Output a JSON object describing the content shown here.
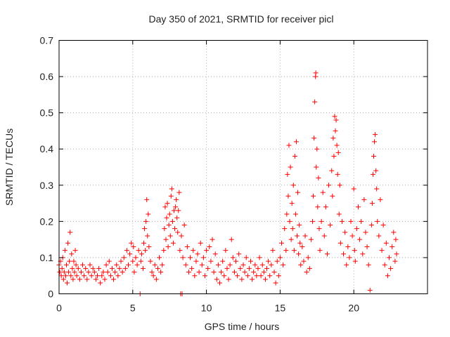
{
  "chart_data": {
    "type": "scatter",
    "title": "Day 350 of 2021, SRMTID for receiver picl",
    "xlabel": "GPS time / hours",
    "ylabel": "SRMTID / TECUs",
    "xlim": [
      0,
      25
    ],
    "ylim": [
      0,
      0.7
    ],
    "xticks": [
      0,
      5,
      10,
      15,
      20
    ],
    "yticks": [
      0,
      0.1,
      0.2,
      0.3,
      0.4,
      0.5,
      0.6,
      0.7
    ],
    "xtick_labels": [
      "0",
      "5",
      "10",
      "15",
      "20"
    ],
    "ytick_labels": [
      "0",
      "0.1",
      "0.2",
      "0.3",
      "0.4",
      "0.5",
      "0.6",
      "0.7"
    ],
    "grid": true,
    "marker": "+",
    "color": "#ff0000",
    "series": [
      {
        "name": "SRMTID",
        "points": [
          [
            0.0,
            0.08
          ],
          [
            0.05,
            0.06
          ],
          [
            0.1,
            0.09
          ],
          [
            0.15,
            0.05
          ],
          [
            0.2,
            0.07
          ],
          [
            0.25,
            0.1
          ],
          [
            0.3,
            0.04
          ],
          [
            0.35,
            0.06
          ],
          [
            0.4,
            0.12
          ],
          [
            0.45,
            0.05
          ],
          [
            0.5,
            0.08
          ],
          [
            0.55,
            0.03
          ],
          [
            0.6,
            0.14
          ],
          [
            0.65,
            0.06
          ],
          [
            0.7,
            0.09
          ],
          [
            0.75,
            0.17
          ],
          [
            0.8,
            0.05
          ],
          [
            0.85,
            0.11
          ],
          [
            0.9,
            0.07
          ],
          [
            0.95,
            0.04
          ],
          [
            1.0,
            0.09
          ],
          [
            1.05,
            0.06
          ],
          [
            1.1,
            0.12
          ],
          [
            1.15,
            0.08
          ],
          [
            1.2,
            0.05
          ],
          [
            1.3,
            0.07
          ],
          [
            1.4,
            0.04
          ],
          [
            1.5,
            0.06
          ],
          [
            1.6,
            0.08
          ],
          [
            1.7,
            0.05
          ],
          [
            1.8,
            0.07
          ],
          [
            1.9,
            0.04
          ],
          [
            2.0,
            0.06
          ],
          [
            2.1,
            0.08
          ],
          [
            2.2,
            0.05
          ],
          [
            2.3,
            0.07
          ],
          [
            2.4,
            0.06
          ],
          [
            2.5,
            0.04
          ],
          [
            2.6,
            0.05
          ],
          [
            2.7,
            0.07
          ],
          [
            2.8,
            0.03
          ],
          [
            2.9,
            0.05
          ],
          [
            3.0,
            0.06
          ],
          [
            3.1,
            0.04
          ],
          [
            3.2,
            0.08
          ],
          [
            3.3,
            0.06
          ],
          [
            3.4,
            0.09
          ],
          [
            3.5,
            0.05
          ],
          [
            3.6,
            0.07
          ],
          [
            3.7,
            0.04
          ],
          [
            3.8,
            0.06
          ],
          [
            3.9,
            0.08
          ],
          [
            4.0,
            0.05
          ],
          [
            4.1,
            0.07
          ],
          [
            4.2,
            0.09
          ],
          [
            4.3,
            0.06
          ],
          [
            4.4,
            0.1
          ],
          [
            4.5,
            0.07
          ],
          [
            4.6,
            0.12
          ],
          [
            4.7,
            0.08
          ],
          [
            4.8,
            0.11
          ],
          [
            4.9,
            0.14
          ],
          [
            5.0,
            0.09
          ],
          [
            5.05,
            0.13
          ],
          [
            5.1,
            0.06
          ],
          [
            5.2,
            0.1
          ],
          [
            5.3,
            0.08
          ],
          [
            5.4,
            0.12
          ],
          [
            5.5,
            0.0
          ],
          [
            5.55,
            0.09
          ],
          [
            5.6,
            0.11
          ],
          [
            5.7,
            0.07
          ],
          [
            5.75,
            0.14
          ],
          [
            5.8,
            0.18
          ],
          [
            5.85,
            0.12
          ],
          [
            5.9,
            0.2
          ],
          [
            5.95,
            0.26
          ],
          [
            6.0,
            0.16
          ],
          [
            6.05,
            0.22
          ],
          [
            6.1,
            0.13
          ],
          [
            6.2,
            0.09
          ],
          [
            6.3,
            0.06
          ],
          [
            6.4,
            0.05
          ],
          [
            6.5,
            0.08
          ],
          [
            6.6,
            0.04
          ],
          [
            6.7,
            0.07
          ],
          [
            6.8,
            0.1
          ],
          [
            6.9,
            0.06
          ],
          [
            7.0,
            0.08
          ],
          [
            7.1,
            0.12
          ],
          [
            7.15,
            0.18
          ],
          [
            7.2,
            0.24
          ],
          [
            7.25,
            0.15
          ],
          [
            7.3,
            0.21
          ],
          [
            7.35,
            0.25
          ],
          [
            7.4,
            0.13
          ],
          [
            7.45,
            0.19
          ],
          [
            7.5,
            0.22
          ],
          [
            7.55,
            0.16
          ],
          [
            7.6,
            0.27
          ],
          [
            7.65,
            0.29
          ],
          [
            7.7,
            0.2
          ],
          [
            7.75,
            0.14
          ],
          [
            7.8,
            0.23
          ],
          [
            7.85,
            0.18
          ],
          [
            7.9,
            0.24
          ],
          [
            7.95,
            0.26
          ],
          [
            8.0,
            0.21
          ],
          [
            8.05,
            0.17
          ],
          [
            8.1,
            0.23
          ],
          [
            8.15,
            0.28
          ],
          [
            8.2,
            0.12
          ],
          [
            8.25,
            0.0
          ],
          [
            8.3,
            0.16
          ],
          [
            8.35,
            0.0
          ],
          [
            8.4,
            0.1
          ],
          [
            8.5,
            0.19
          ],
          [
            8.6,
            0.08
          ],
          [
            8.7,
            0.13
          ],
          [
            8.8,
            0.06
          ],
          [
            8.9,
            0.1
          ],
          [
            9.0,
            0.07
          ],
          [
            9.1,
            0.12
          ],
          [
            9.2,
            0.05
          ],
          [
            9.3,
            0.09
          ],
          [
            9.4,
            0.11
          ],
          [
            9.5,
            0.06
          ],
          [
            9.6,
            0.14
          ],
          [
            9.7,
            0.08
          ],
          [
            9.8,
            0.1
          ],
          [
            9.9,
            0.05
          ],
          [
            10.0,
            0.12
          ],
          [
            10.1,
            0.07
          ],
          [
            10.2,
            0.13
          ],
          [
            10.3,
            0.09
          ],
          [
            10.4,
            0.15
          ],
          [
            10.5,
            0.06
          ],
          [
            10.6,
            0.11
          ],
          [
            10.7,
            0.04
          ],
          [
            10.8,
            0.08
          ],
          [
            10.9,
            0.03
          ],
          [
            11.0,
            0.06
          ],
          [
            11.1,
            0.09
          ],
          [
            11.2,
            0.05
          ],
          [
            11.3,
            0.12
          ],
          [
            11.4,
            0.07
          ],
          [
            11.5,
            0.04
          ],
          [
            11.6,
            0.08
          ],
          [
            11.7,
            0.15
          ],
          [
            11.8,
            0.1
          ],
          [
            11.9,
            0.06
          ],
          [
            12.0,
            0.09
          ],
          [
            12.1,
            0.05
          ],
          [
            12.2,
            0.11
          ],
          [
            12.3,
            0.07
          ],
          [
            12.4,
            0.04
          ],
          [
            12.5,
            0.08
          ],
          [
            12.6,
            0.06
          ],
          [
            12.7,
            0.1
          ],
          [
            12.8,
            0.05
          ],
          [
            12.9,
            0.07
          ],
          [
            13.0,
            0.09
          ],
          [
            13.1,
            0.04
          ],
          [
            13.2,
            0.06
          ],
          [
            13.3,
            0.08
          ],
          [
            13.4,
            0.05
          ],
          [
            13.5,
            0.07
          ],
          [
            13.6,
            0.1
          ],
          [
            13.7,
            0.05
          ],
          [
            13.8,
            0.08
          ],
          [
            13.9,
            0.06
          ],
          [
            14.0,
            0.04
          ],
          [
            14.1,
            0.07
          ],
          [
            14.2,
            0.09
          ],
          [
            14.3,
            0.05
          ],
          [
            14.4,
            0.08
          ],
          [
            14.5,
            0.12
          ],
          [
            14.6,
            0.06
          ],
          [
            14.7,
            0.03
          ],
          [
            14.8,
            0.09
          ],
          [
            14.9,
            0.05
          ],
          [
            15.0,
            0.1
          ],
          [
            15.1,
            0.14
          ],
          [
            15.2,
            0.08
          ],
          [
            15.3,
            0.18
          ],
          [
            15.4,
            0.12
          ],
          [
            15.45,
            0.22
          ],
          [
            15.5,
            0.33
          ],
          [
            15.55,
            0.27
          ],
          [
            15.6,
            0.41
          ],
          [
            15.65,
            0.2
          ],
          [
            15.7,
            0.35
          ],
          [
            15.75,
            0.15
          ],
          [
            15.8,
            0.25
          ],
          [
            15.85,
            0.18
          ],
          [
            15.9,
            0.3
          ],
          [
            15.95,
            0.12
          ],
          [
            16.0,
            0.38
          ],
          [
            16.05,
            0.22
          ],
          [
            16.1,
            0.42
          ],
          [
            16.15,
            0.16
          ],
          [
            16.2,
            0.28
          ],
          [
            16.25,
            0.11
          ],
          [
            16.3,
            0.19
          ],
          [
            16.35,
            0.14
          ],
          [
            16.4,
            0.08
          ],
          [
            16.5,
            0.13
          ],
          [
            16.6,
            0.09
          ],
          [
            16.7,
            0.16
          ],
          [
            16.8,
            0.06
          ],
          [
            16.9,
            0.1
          ],
          [
            17.0,
            0.07
          ],
          [
            17.1,
            0.15
          ],
          [
            17.2,
            0.2
          ],
          [
            17.25,
            0.27
          ],
          [
            17.3,
            0.43
          ],
          [
            17.35,
            0.53
          ],
          [
            17.4,
            0.6
          ],
          [
            17.42,
            0.61
          ],
          [
            17.45,
            0.35
          ],
          [
            17.5,
            0.4
          ],
          [
            17.55,
            0.24
          ],
          [
            17.6,
            0.32
          ],
          [
            17.65,
            0.18
          ],
          [
            17.7,
            0.12
          ],
          [
            17.8,
            0.2
          ],
          [
            17.9,
            0.28
          ],
          [
            18.0,
            0.16
          ],
          [
            18.1,
            0.24
          ],
          [
            18.2,
            0.11
          ],
          [
            18.3,
            0.3
          ],
          [
            18.4,
            0.19
          ],
          [
            18.5,
            0.34
          ],
          [
            18.55,
            0.27
          ],
          [
            18.6,
            0.43
          ],
          [
            18.65,
            0.38
          ],
          [
            18.7,
            0.49
          ],
          [
            18.75,
            0.45
          ],
          [
            18.8,
            0.48
          ],
          [
            18.85,
            0.41
          ],
          [
            18.9,
            0.33
          ],
          [
            18.95,
            0.39
          ],
          [
            19.0,
            0.22
          ],
          [
            19.05,
            0.3
          ],
          [
            19.1,
            0.14
          ],
          [
            19.2,
            0.2
          ],
          [
            19.3,
            0.11
          ],
          [
            19.4,
            0.17
          ],
          [
            19.5,
            0.08
          ],
          [
            19.6,
            0.13
          ],
          [
            19.7,
            0.1
          ],
          [
            19.8,
            0.2
          ],
          [
            19.9,
            0.16
          ],
          [
            20.0,
            0.29
          ],
          [
            20.05,
            0.12
          ],
          [
            20.1,
            0.09
          ],
          [
            20.2,
            0.18
          ],
          [
            20.3,
            0.24
          ],
          [
            20.4,
            0.15
          ],
          [
            20.5,
            0.2
          ],
          [
            20.6,
            0.11
          ],
          [
            20.7,
            0.26
          ],
          [
            20.8,
            0.17
          ],
          [
            20.9,
            0.13
          ],
          [
            21.0,
            0.08
          ],
          [
            21.1,
            0.01
          ],
          [
            21.2,
            0.19
          ],
          [
            21.25,
            0.25
          ],
          [
            21.3,
            0.33
          ],
          [
            21.35,
            0.38
          ],
          [
            21.4,
            0.42
          ],
          [
            21.45,
            0.44
          ],
          [
            21.5,
            0.34
          ],
          [
            21.55,
            0.29
          ],
          [
            21.6,
            0.2
          ],
          [
            21.7,
            0.16
          ],
          [
            21.8,
            0.26
          ],
          [
            21.9,
            0.12
          ],
          [
            22.0,
            0.19
          ],
          [
            22.1,
            0.08
          ],
          [
            22.2,
            0.14
          ],
          [
            22.3,
            0.05
          ],
          [
            22.4,
            0.1
          ],
          [
            22.5,
            0.07
          ],
          [
            22.6,
            0.13
          ],
          [
            22.7,
            0.17
          ],
          [
            22.8,
            0.09
          ],
          [
            22.85,
            0.15
          ],
          [
            22.9,
            0.11
          ]
        ]
      }
    ]
  }
}
